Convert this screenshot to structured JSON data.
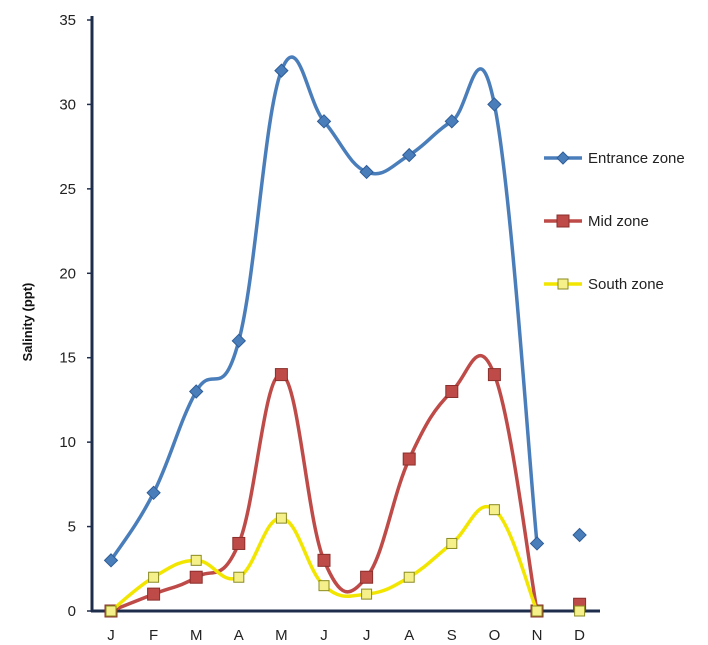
{
  "chart_data": {
    "type": "line",
    "title": "",
    "xlabel": "",
    "ylabel": "Salinity  (ppt)",
    "categories": [
      "J",
      "F",
      "M",
      "A",
      "M",
      "J",
      "J",
      "A",
      "S",
      "O",
      "N",
      "D"
    ],
    "ylim": [
      0,
      35
    ],
    "yticks": [
      0,
      5,
      10,
      15,
      20,
      25,
      30,
      35
    ],
    "grid": false,
    "smooth": true,
    "legend_position": "right",
    "series": [
      {
        "name": "Entrance zone",
        "color": "#4a7ebb",
        "marker": "diamond",
        "values": [
          3,
          7,
          13,
          16,
          32,
          29,
          26,
          27,
          29,
          30,
          4,
          4.5
        ]
      },
      {
        "name": "Mid zone",
        "color": "#be4b48",
        "marker": "square",
        "values": [
          0,
          1,
          2,
          4,
          14,
          3,
          2,
          9,
          13,
          14,
          0,
          0.4
        ]
      },
      {
        "name": "South zone",
        "color": "#f2e600",
        "marker_fill": "#f5f08a",
        "marker_stroke": "#8a8a20",
        "marker": "square",
        "values": [
          0,
          2,
          3,
          2,
          5.5,
          1.5,
          1,
          2,
          4,
          6,
          0,
          0
        ]
      }
    ],
    "segment_breaks": [
      [
        10,
        11
      ]
    ]
  }
}
